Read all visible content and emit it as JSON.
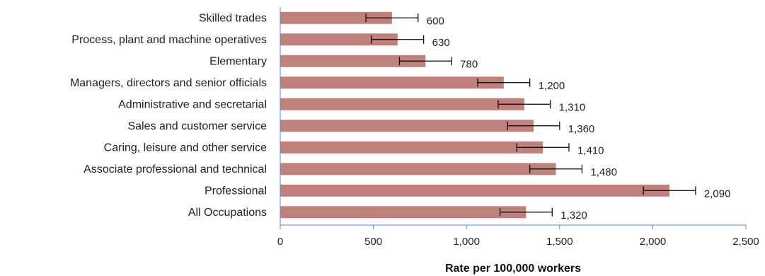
{
  "chart_data": {
    "type": "bar",
    "orientation": "horizontal",
    "categories": [
      "Skilled trades",
      "Process, plant and machine operatives",
      "Elementary",
      "Managers, directors and senior officials",
      "Administrative and secretarial",
      "Sales and customer service",
      "Caring, leisure and other service",
      "Associate professional and technical",
      "Professional",
      "All Occupations"
    ],
    "values": [
      600,
      630,
      780,
      1200,
      1310,
      1360,
      1410,
      1480,
      2090,
      1320
    ],
    "data_labels": [
      "600",
      "630",
      "780",
      "1,200",
      "1,310",
      "1,360",
      "1,410",
      "1,480",
      "2,090",
      "1,320"
    ],
    "error_low": [
      460,
      490,
      640,
      1060,
      1170,
      1220,
      1270,
      1340,
      1950,
      1180
    ],
    "error_high": [
      740,
      770,
      920,
      1340,
      1450,
      1500,
      1550,
      1620,
      2230,
      1460
    ],
    "xlim": [
      0,
      2500
    ],
    "xticks": [
      0,
      500,
      1000,
      1500,
      2000,
      2500
    ],
    "xtick_labels": [
      "0",
      "500",
      "1,000",
      "1,500",
      "2,000",
      "2,500"
    ],
    "xlabel": "Rate per 100,000 workers",
    "ylabel": "",
    "title": "",
    "grid": false,
    "legend": "none",
    "bar_color": "#c0807c",
    "axis_color": "#5b8ac9"
  }
}
